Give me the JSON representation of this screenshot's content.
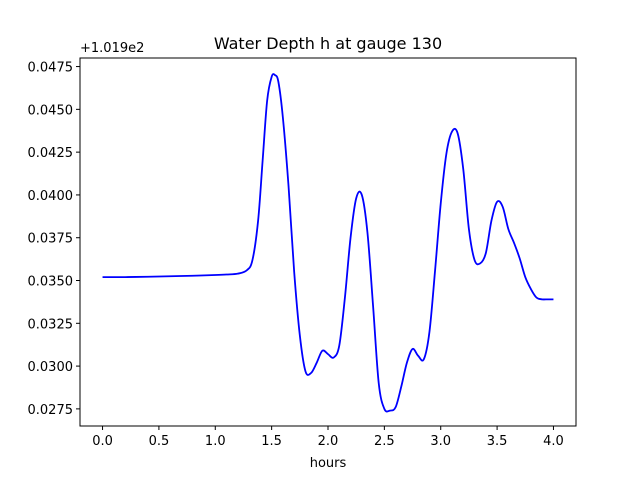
{
  "chart_data": {
    "type": "line",
    "title": "Water Depth h at gauge 130",
    "xlabel": "hours",
    "ylabel": "",
    "offset_label": "+1.019e2",
    "xlim": [
      -0.2,
      4.2
    ],
    "ylim": [
      0.0265,
      0.048
    ],
    "x_ticks": [
      0.0,
      0.5,
      1.0,
      1.5,
      2.0,
      2.5,
      3.0,
      3.5,
      4.0
    ],
    "x_tick_labels": [
      "0.0",
      "0.5",
      "1.0",
      "1.5",
      "2.0",
      "2.5",
      "3.0",
      "3.5",
      "4.0"
    ],
    "y_ticks": [
      0.0275,
      0.03,
      0.0325,
      0.035,
      0.0375,
      0.04,
      0.0425,
      0.045,
      0.0475
    ],
    "y_tick_labels": [
      "0.0275",
      "0.0300",
      "0.0325",
      "0.0350",
      "0.0375",
      "0.0400",
      "0.0425",
      "0.0450",
      "0.0475"
    ],
    "grid": false,
    "series": [
      {
        "color": "#0000ff",
        "x": [
          0.0,
          0.2,
          0.4,
          0.6,
          0.8,
          1.0,
          1.1,
          1.2,
          1.28,
          1.33,
          1.38,
          1.42,
          1.46,
          1.5,
          1.53,
          1.56,
          1.6,
          1.65,
          1.7,
          1.75,
          1.8,
          1.85,
          1.9,
          1.95,
          2.0,
          2.05,
          2.1,
          2.15,
          2.2,
          2.25,
          2.3,
          2.35,
          2.4,
          2.45,
          2.5,
          2.55,
          2.6,
          2.65,
          2.7,
          2.75,
          2.8,
          2.85,
          2.9,
          2.95,
          3.0,
          3.05,
          3.1,
          3.15,
          3.2,
          3.25,
          3.3,
          3.35,
          3.4,
          3.45,
          3.5,
          3.55,
          3.6,
          3.65,
          3.7,
          3.75,
          3.8,
          3.85,
          3.9,
          3.95,
          4.0
        ],
        "y": [
          0.0352,
          0.0352,
          0.03522,
          0.03525,
          0.03528,
          0.03532,
          0.03535,
          0.0354,
          0.0356,
          0.0362,
          0.0385,
          0.042,
          0.0455,
          0.0469,
          0.047,
          0.0466,
          0.0445,
          0.0405,
          0.0355,
          0.0318,
          0.0297,
          0.0296,
          0.0302,
          0.0309,
          0.0307,
          0.0305,
          0.0312,
          0.034,
          0.0375,
          0.0398,
          0.04,
          0.0378,
          0.0335,
          0.029,
          0.0275,
          0.0274,
          0.0276,
          0.0288,
          0.0302,
          0.031,
          0.0306,
          0.0304,
          0.032,
          0.0356,
          0.0395,
          0.0424,
          0.0437,
          0.0436,
          0.0415,
          0.038,
          0.0362,
          0.036,
          0.0366,
          0.0385,
          0.0396,
          0.0393,
          0.038,
          0.0372,
          0.0363,
          0.0352,
          0.0345,
          0.034,
          0.0339,
          0.0339,
          0.0339
        ]
      }
    ]
  }
}
